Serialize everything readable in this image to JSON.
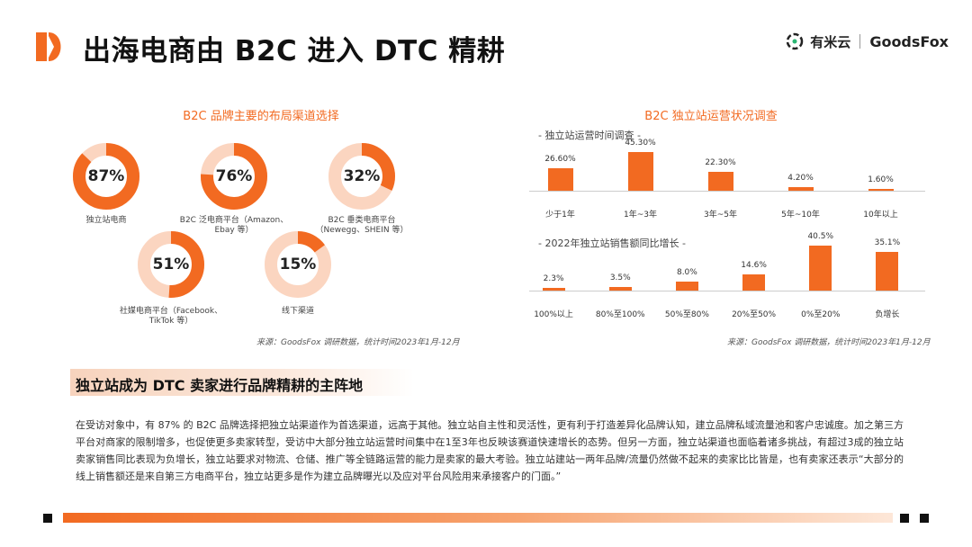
{
  "header": {
    "title": "出海电商由 B2C 进入 DTC 精耕",
    "brand_a": "有米云",
    "brand_b": "GoodsFox"
  },
  "left": {
    "title": "B2C 品牌主要的布局渠道选择",
    "donuts": [
      {
        "value": "87%",
        "caption": "独立站电商"
      },
      {
        "value": "76%",
        "caption_line1": "B2C 泛电商平台（Amazon、",
        "caption_line2": "Ebay 等）"
      },
      {
        "value": "32%",
        "caption_line1": "B2C 垂类电商平台",
        "caption_line2": "（Newegg、SHEIN 等）"
      },
      {
        "value": "51%",
        "caption_line1": "社媒电商平台（Facebook、",
        "caption_line2": "TikTok 等）"
      },
      {
        "value": "15%",
        "caption": "线下渠道"
      }
    ],
    "source": "来源：GoodsFox 调研数据，统计时间2023年1月-12月"
  },
  "right": {
    "title": "B2C 独立站运营状况调查",
    "chart1_title": "- 独立站运营时间调查 -",
    "chart2_title": "- 2022年独立站销售额同比增长 -",
    "source": "来源：GoodsFox 调研数据，统计时间2023年1月-12月"
  },
  "chart_data": [
    {
      "type": "pie",
      "title": "B2C 品牌主要的布局渠道选择",
      "categories": [
        "独立站电商",
        "B2C 泛电商平台（Amazon、Ebay 等）",
        "B2C 垂类电商平台（Newegg、SHEIN 等）",
        "社媒电商平台（Facebook、TikTok 等）",
        "线下渠道"
      ],
      "values": [
        87,
        76,
        32,
        51,
        15
      ]
    },
    {
      "type": "bar",
      "title": "- 独立站运营时间调查 -",
      "categories": [
        "少于1年",
        "1年~3年",
        "3年~5年",
        "5年~10年",
        "10年以上"
      ],
      "values": [
        26.6,
        45.3,
        22.3,
        4.2,
        1.6
      ],
      "labels": [
        "26.60%",
        "45.30%",
        "22.30%",
        "4.20%",
        "1.60%"
      ],
      "ylim": [
        0,
        45.3
      ]
    },
    {
      "type": "bar",
      "title": "- 2022年独立站销售额同比增长 -",
      "categories": [
        "100%以上",
        "80%至100%",
        "50%至80%",
        "20%至50%",
        "0%至20%",
        "负增长"
      ],
      "values": [
        2.3,
        3.5,
        8.0,
        14.6,
        40.5,
        35.1
      ],
      "labels": [
        "2.3%",
        "3.5%",
        "8.0%",
        "14.6%",
        "40.5%",
        "35.1%"
      ],
      "ylim": [
        0,
        40.5
      ]
    }
  ],
  "colors": {
    "accent": "#f26a21",
    "ring_bg": "#fbd5c0"
  },
  "banner": "独立站成为 DTC 卖家进行品牌精耕的主阵地",
  "paragraph": "在受访对象中，有 87% 的 B2C 品牌选择把独立站渠道作为首选渠道，远高于其他。独立站自主性和灵活性，更有利于打造差异化品牌认知，建立品牌私域流量池和客户忠诚度。加之第三方平台对商家的限制增多，也促使更多卖家转型，受访中大部分独立站运营时间集中在1至3年也反映该赛道快速增长的态势。但另一方面，独立站渠道也面临着诸多挑战，有超过3成的独立站卖家销售同比表现为负增长，独立站要求对物流、仓储、推广等全链路运营的能力是卖家的最大考验。独立站建站一两年品牌/流量仍然做不起来的卖家比比皆是，也有卖家还表示“大部分的线上销售额还是来自第三方电商平台，独立站更多是作为建立品牌曝光以及应对平台风险用来承接客户的门面。”"
}
